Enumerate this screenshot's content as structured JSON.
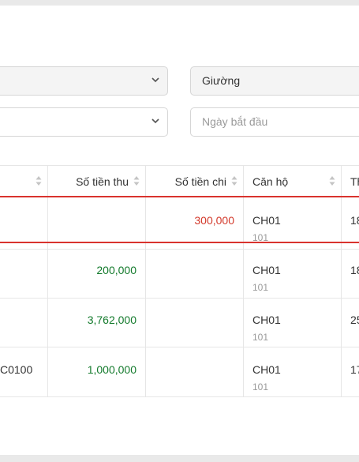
{
  "filters": {
    "select1_value": "",
    "room_type_value": "Giường",
    "select2_value": "",
    "start_date_placeholder": "Ngày bắt đầu"
  },
  "table": {
    "columns": [
      {
        "label": ""
      },
      {
        "label": "Số tiền thu"
      },
      {
        "label": "Số tiền chi"
      },
      {
        "label": "Căn hộ"
      },
      {
        "label": "Th"
      }
    ],
    "rows": [
      {
        "code": "",
        "income": "",
        "expense": "300,000",
        "apartment": "CH01",
        "unit": "101",
        "next": "18"
      },
      {
        "code": "",
        "income": "200,000",
        "expense": "",
        "apartment": "CH01",
        "unit": "101",
        "next": "18"
      },
      {
        "code": "",
        "income": "3,762,000",
        "expense": "",
        "apartment": "CH01",
        "unit": "101",
        "next": "25"
      },
      {
        "code": "C0100",
        "income": "1,000,000",
        "expense": "",
        "apartment": "CH01",
        "unit": "101",
        "next": "17"
      }
    ]
  },
  "colors": {
    "income": "#137a2c",
    "expense": "#d33a2c",
    "selected_row_border": "#d9332e"
  },
  "icons": [
    "chevron-down-icon",
    "sort-icon"
  ]
}
